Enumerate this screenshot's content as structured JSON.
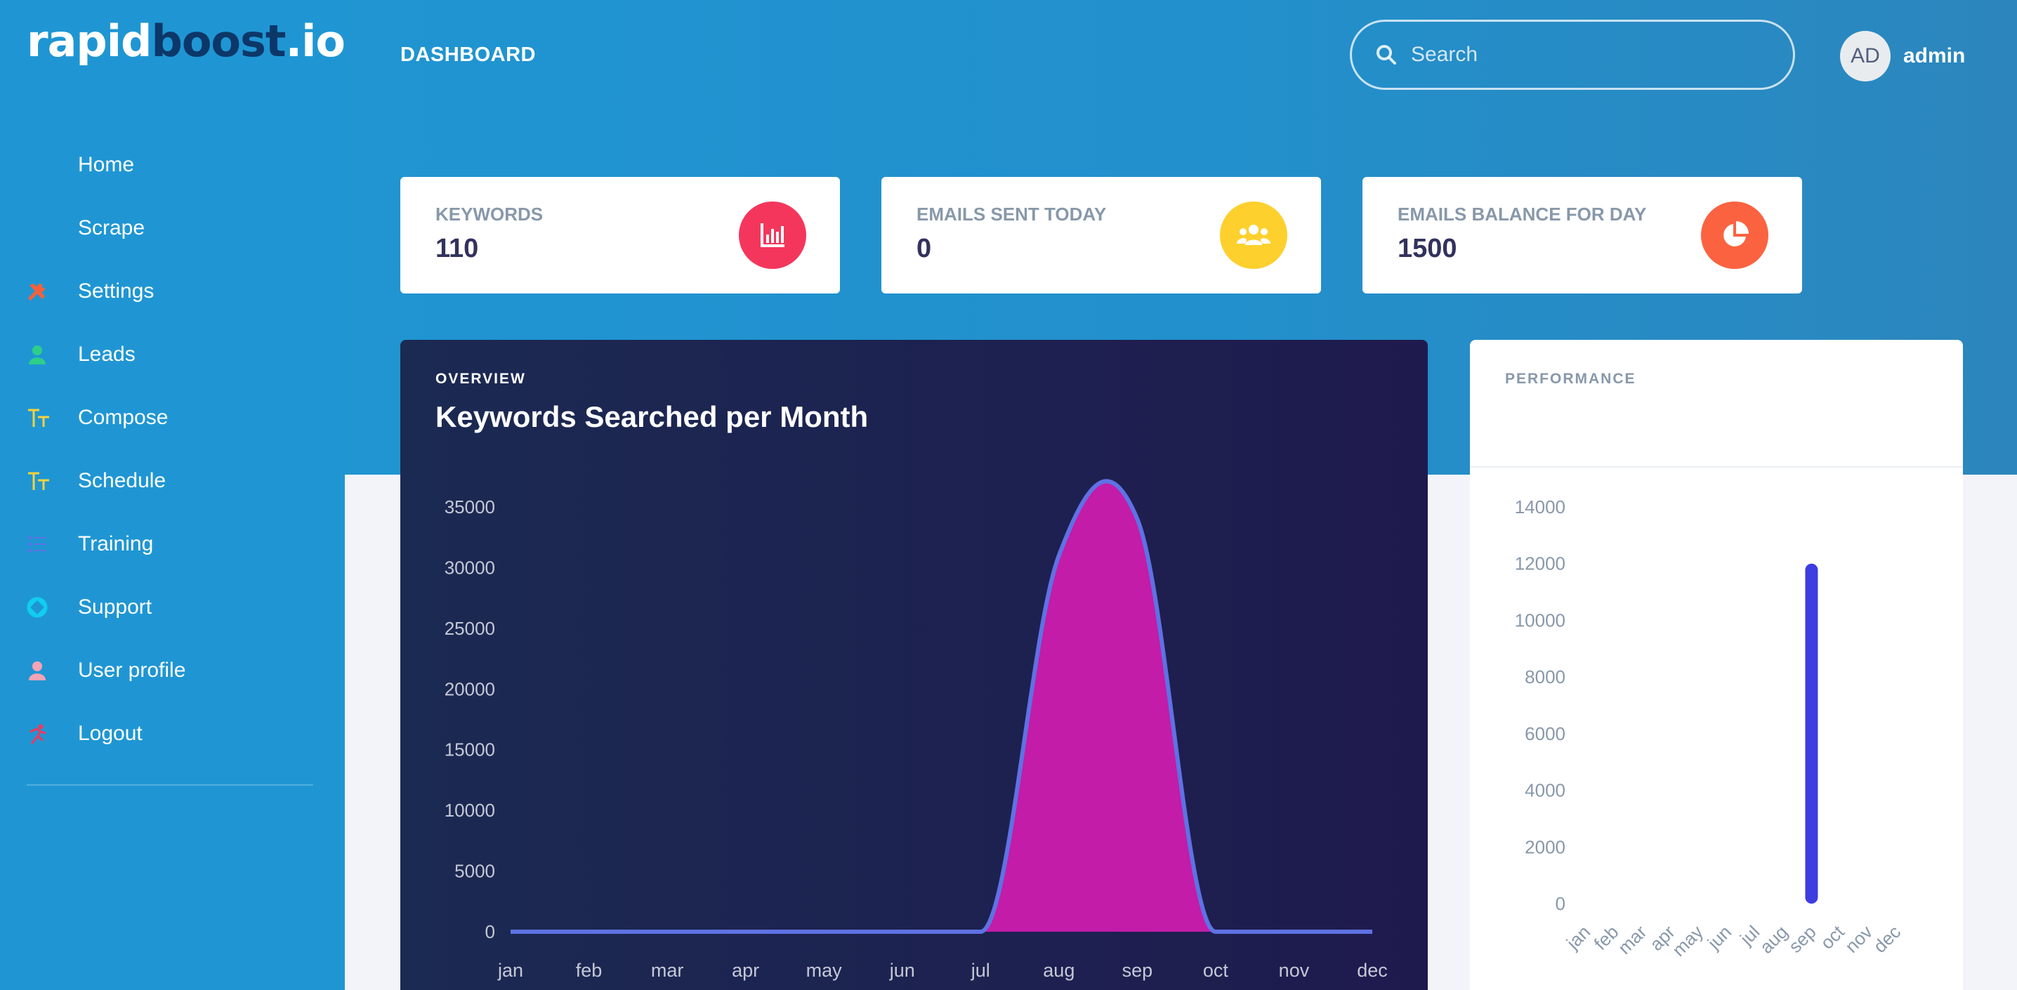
{
  "brand": {
    "part1": "rapid",
    "part2": "boost",
    "part3": ".io"
  },
  "header": {
    "title": "DASHBOARD",
    "search_placeholder": "Search",
    "user_initials": "AD",
    "user_name": "admin"
  },
  "nav": [
    {
      "label": "Home",
      "icon": "none"
    },
    {
      "label": "Scrape",
      "icon": "none"
    },
    {
      "label": "Settings",
      "icon": "tools-icon",
      "color": "#f5603c"
    },
    {
      "label": "Leads",
      "icon": "person-icon",
      "color": "#2dce89"
    },
    {
      "label": "Compose",
      "icon": "text-icon",
      "color": "#f7d23a"
    },
    {
      "label": "Schedule",
      "icon": "text-icon",
      "color": "#f7d23a"
    },
    {
      "label": "Training",
      "icon": "list-icon",
      "color": "#5e72e4"
    },
    {
      "label": "Support",
      "icon": "support-icon",
      "color": "#11cdef"
    },
    {
      "label": "User profile",
      "icon": "person-icon",
      "color": "#f3a4b5"
    },
    {
      "label": "Logout",
      "icon": "running-icon",
      "color": "#f5365c"
    }
  ],
  "stats": [
    {
      "label": "KEYWORDS",
      "value": "110",
      "icon": "bar-chart-icon",
      "color": "#f5365c"
    },
    {
      "label": "EMAILS SENT TODAY",
      "value": "0",
      "icon": "users-icon",
      "color": "#fdd02e"
    },
    {
      "label": "EMAILS BALANCE FOR DAY",
      "value": "1500",
      "icon": "pie-chart-icon",
      "color": "#fb6340"
    }
  ],
  "overview": {
    "eyebrow": "OVERVIEW",
    "title": "Keywords Searched per Month"
  },
  "performance": {
    "eyebrow": "PERFORMANCE"
  },
  "chart_data": [
    {
      "type": "area",
      "title": "Keywords Searched per Month",
      "categories": [
        "jan",
        "feb",
        "mar",
        "apr",
        "may",
        "jun",
        "jul",
        "aug",
        "sep",
        "oct",
        "nov",
        "dec"
      ],
      "values": [
        0,
        0,
        0,
        0,
        0,
        0,
        0,
        31000,
        34000,
        0,
        0,
        0
      ],
      "ylim": [
        0,
        35000
      ],
      "yticks": [
        0,
        5000,
        10000,
        15000,
        20000,
        25000,
        30000,
        35000
      ],
      "line_color": "#5e72e4",
      "fill_color": "#c21ca8",
      "grid": false
    },
    {
      "type": "bar",
      "title": "",
      "categories": [
        "jan",
        "feb",
        "mar",
        "apr",
        "may",
        "jun",
        "jul",
        "aug",
        "sep",
        "oct",
        "nov",
        "dec"
      ],
      "values": [
        0,
        0,
        0,
        0,
        0,
        0,
        0,
        0,
        12000,
        0,
        0,
        0
      ],
      "ylim": [
        0,
        14000
      ],
      "yticks": [
        0,
        2000,
        4000,
        6000,
        8000,
        10000,
        12000,
        14000
      ],
      "bar_color": "#3d3de0",
      "grid": false
    }
  ]
}
